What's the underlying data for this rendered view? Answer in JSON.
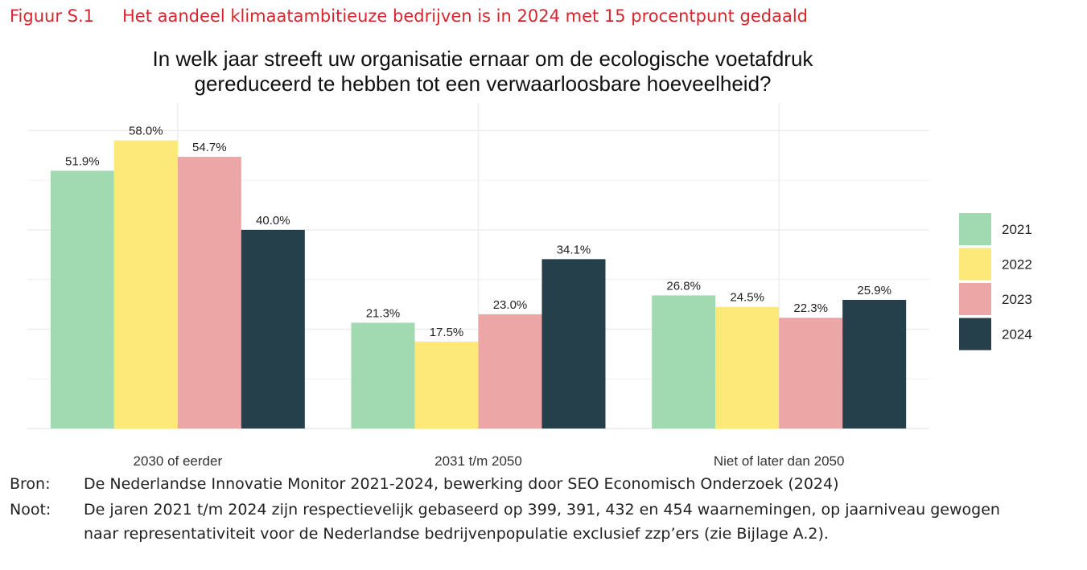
{
  "figure": {
    "label": "Figuur S.1",
    "title": "Het aandeel klimaatambitieuze bedrijven is in 2024 met 15 procentpunt gedaald"
  },
  "source": {
    "label": "Bron:",
    "text": "De Nederlandse Innovatie Monitor 2021-2024, bewerking door SEO Economisch Onderzoek (2024)"
  },
  "note": {
    "label": "Noot:",
    "line1": "De jaren 2021 t/m 2024 zijn respectievelijk gebaseerd op 399, 391, 432 en 454 waarnemingen, op jaarniveau gewogen",
    "line2": "naar representativiteit voor de Nederlandse bedrijvenpopulatie exclusief zzp’ers (zie Bijlage A.2)."
  },
  "chart_data": {
    "type": "bar",
    "title_lines": [
      "In welk jaar streeft uw organisatie ernaar om de ecologische voetafdruk",
      "gereduceerd te hebben tot een verwaarloosbare hoeveelheid?"
    ],
    "categories": [
      "2030 of eerder",
      "2031 t/m 2050",
      "Niet of later dan 2050"
    ],
    "series": [
      {
        "name": "2021",
        "color": "#a1d9b1",
        "values": [
          51.9,
          21.3,
          26.8
        ],
        "labels": [
          "51.9%",
          "21.3%",
          "26.8%"
        ]
      },
      {
        "name": "2022",
        "color": "#fde97a",
        "values": [
          58.0,
          17.5,
          24.5
        ],
        "labels": [
          "58.0%",
          "17.5%",
          "24.5%"
        ]
      },
      {
        "name": "2023",
        "color": "#eca6a6",
        "values": [
          54.7,
          23.0,
          22.3
        ],
        "labels": [
          "54.7%",
          "23.0%",
          "22.3%"
        ]
      },
      {
        "name": "2024",
        "color": "#25404a",
        "values": [
          40.0,
          34.1,
          25.9
        ],
        "labels": [
          "40.0%",
          "34.1%",
          "25.9%"
        ]
      }
    ],
    "xlabel": "",
    "ylabel": "",
    "ylim": [
      0,
      62
    ],
    "grid": true,
    "y_axis_labels": false,
    "legend_position": "right"
  }
}
